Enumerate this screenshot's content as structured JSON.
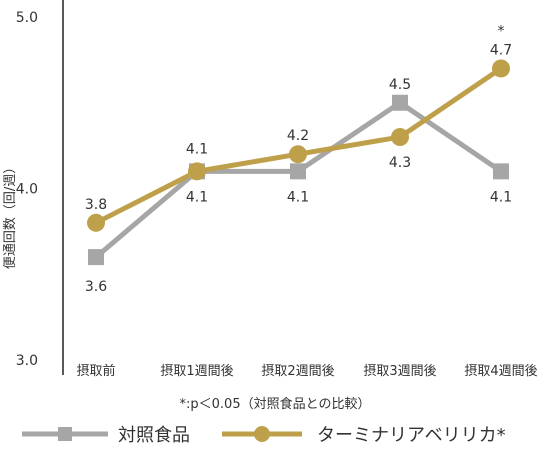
{
  "chart_data": {
    "type": "line",
    "ylabel": "便通回数（回/週）",
    "ylim": [
      3.0,
      5.0
    ],
    "yticks": [
      "3.0",
      "4.0",
      "5.0"
    ],
    "categories": [
      "摂取前",
      "摂取1週間後",
      "摂取2週間後",
      "摂取3週間後",
      "摂取4週間後"
    ],
    "series": [
      {
        "name": "対照食品",
        "marker": "square",
        "color": "#a6a6a6",
        "values": [
          3.6,
          4.1,
          4.1,
          4.5,
          4.1
        ],
        "labels": [
          "3.6",
          "4.1",
          "4.1",
          "4.5",
          "4.1"
        ]
      },
      {
        "name": "ターミナリアベリリカ*",
        "marker": "circle",
        "color": "#bfa04a",
        "values": [
          3.8,
          4.1,
          4.2,
          4.3,
          4.7
        ],
        "labels": [
          "3.8",
          "4.1",
          "4.2",
          "4.3",
          "4.7"
        ]
      }
    ],
    "annotations": [
      {
        "text": "*",
        "category": "摂取4週間後"
      }
    ],
    "footnote": "*:p＜0.05（対照食品との比較）",
    "grid": false,
    "legend": "bottom"
  }
}
